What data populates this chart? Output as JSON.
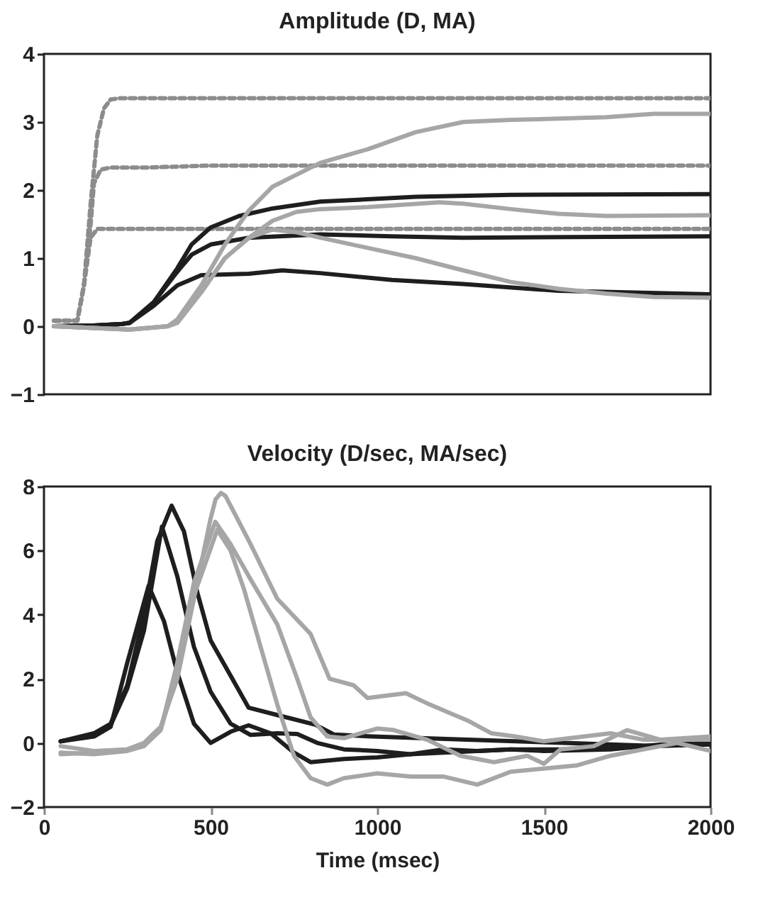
{
  "chart_data": [
    {
      "type": "line",
      "title": "Amplitude (D, MA)",
      "xlim": [
        0,
        2000
      ],
      "ylim": [
        -1,
        4
      ],
      "yticks": [
        -1,
        0,
        1,
        2,
        3,
        4
      ],
      "tick_labels": "y",
      "grid": false,
      "legend": false,
      "series": [
        {
          "color": "#8c8c8c",
          "line_style": "dashed",
          "x": [
            30,
            100,
            120,
            140,
            160,
            180,
            200,
            230,
            2000
          ],
          "values": [
            0.08,
            0.08,
            0.6,
            1.8,
            2.8,
            3.2,
            3.33,
            3.35,
            3.35
          ]
        },
        {
          "color": "#8c8c8c",
          "line_style": "dashed",
          "x": [
            30,
            100,
            120,
            140,
            150,
            170,
            200,
            300,
            500,
            2000
          ],
          "values": [
            0.08,
            0.08,
            0.6,
            1.5,
            2.1,
            2.3,
            2.33,
            2.33,
            2.36,
            2.36
          ]
        },
        {
          "color": "#8c8c8c",
          "line_style": "dashed",
          "x": [
            30,
            100,
            120,
            140,
            160,
            2000
          ],
          "values": [
            0.08,
            0.08,
            0.6,
            1.3,
            1.43,
            1.43
          ]
        },
        {
          "color": "#1e1e1e",
          "line_style": "solid",
          "x": [
            30,
            150,
            230,
            257,
            329,
            400,
            443,
            500,
            586,
            686,
            829,
            1115,
            1401,
            2000
          ],
          "values": [
            0,
            0.01,
            0.03,
            0.05,
            0.35,
            0.85,
            1.2,
            1.45,
            1.62,
            1.73,
            1.83,
            1.9,
            1.93,
            1.94
          ]
        },
        {
          "color": "#1e1e1e",
          "line_style": "solid",
          "x": [
            30,
            150,
            230,
            257,
            329,
            400,
            443,
            500,
            615,
            829,
            1044,
            1258,
            2000
          ],
          "values": [
            0,
            0.01,
            0.03,
            0.05,
            0.35,
            0.8,
            1.05,
            1.2,
            1.3,
            1.35,
            1.32,
            1.3,
            1.32
          ]
        },
        {
          "color": "#1e1e1e",
          "line_style": "solid",
          "x": [
            30,
            150,
            230,
            257,
            329,
            400,
            472,
            615,
            715,
            829,
            1044,
            1258,
            1544,
            2000
          ],
          "values": [
            0,
            0.01,
            0.03,
            0.05,
            0.3,
            0.6,
            0.75,
            0.77,
            0.82,
            0.78,
            0.68,
            0.62,
            0.52,
            0.47
          ]
        },
        {
          "color": "#a6a6a6",
          "line_style": "solid",
          "x": [
            30,
            257,
            372,
            400,
            472,
            543,
            615,
            686,
            829,
            972,
            1115,
            1258,
            1401,
            1687,
            1830,
            2000
          ],
          "values": [
            0,
            -0.05,
            0,
            0.1,
            0.6,
            1.2,
            1.7,
            2.05,
            2.4,
            2.6,
            2.85,
            3.0,
            3.03,
            3.07,
            3.12,
            3.12
          ]
        },
        {
          "color": "#a6a6a6",
          "line_style": "solid",
          "x": [
            30,
            257,
            372,
            400,
            472,
            543,
            615,
            686,
            758,
            829,
            972,
            1187,
            1258,
            1401,
            1544,
            1687,
            2000
          ],
          "values": [
            0,
            -0.05,
            0,
            0.05,
            0.5,
            1.0,
            1.3,
            1.55,
            1.68,
            1.72,
            1.75,
            1.82,
            1.8,
            1.72,
            1.65,
            1.62,
            1.63
          ]
        },
        {
          "color": "#a6a6a6",
          "line_style": "solid",
          "x": [
            30,
            257,
            372,
            400,
            472,
            543,
            615,
            686,
            758,
            829,
            972,
            1115,
            1258,
            1401,
            1544,
            1687,
            1830,
            2000
          ],
          "values": [
            0,
            -0.05,
            0,
            0.05,
            0.5,
            1.0,
            1.3,
            1.42,
            1.38,
            1.3,
            1.15,
            1.0,
            0.82,
            0.65,
            0.55,
            0.48,
            0.43,
            0.42
          ]
        }
      ]
    },
    {
      "type": "line",
      "title": "Velocity (D/sec, MA/sec)",
      "xlabel": "Time (msec)",
      "xlim": [
        0,
        2000
      ],
      "xticks": [
        0,
        500,
        1000,
        1500,
        2000
      ],
      "ylim": [
        -2,
        8
      ],
      "yticks": [
        -2,
        0,
        2,
        4,
        6,
        8
      ],
      "grid": false,
      "legend": false,
      "series": [
        {
          "color": "#1e1e1e",
          "line_style": "solid",
          "x": [
            50,
            150,
            200,
            250,
            300,
            340,
            383,
            420,
            460,
            500,
            560,
            614,
            700,
            814,
            871,
            986,
            1271,
            1557,
            1843,
            2000
          ],
          "values": [
            0.05,
            0.3,
            0.6,
            1.8,
            4.0,
            6.3,
            7.4,
            6.6,
            4.7,
            3.2,
            2.1,
            1.1,
            0.87,
            0.57,
            0.26,
            0.2,
            0.1,
            0,
            -0.1,
            -0.05
          ]
        },
        {
          "color": "#1e1e1e",
          "line_style": "solid",
          "x": [
            50,
            150,
            200,
            250,
            300,
            354,
            400,
            450,
            500,
            560,
            620,
            700,
            760,
            820,
            900,
            1000,
            1100,
            1200,
            1300,
            1400,
            1500,
            1700,
            1850,
            2000
          ],
          "values": [
            0.05,
            0.25,
            0.55,
            1.7,
            3.5,
            6.75,
            5.2,
            3.0,
            1.6,
            0.6,
            0.25,
            0.3,
            0.28,
            0,
            -0.2,
            -0.25,
            -0.35,
            -0.2,
            -0.25,
            -0.2,
            -0.25,
            -0.2,
            -0.05,
            -0.05
          ]
        },
        {
          "color": "#1e1e1e",
          "line_style": "solid",
          "x": [
            50,
            150,
            200,
            250,
            314,
            360,
            400,
            450,
            500,
            560,
            614,
            680,
            750,
            800,
            900,
            1000,
            1100,
            1200,
            1400,
            1600,
            1800,
            2000
          ],
          "values": [
            0.05,
            0.2,
            0.5,
            2.5,
            4.9,
            3.8,
            2.2,
            0.6,
            0,
            0.35,
            0.55,
            0.3,
            -0.3,
            -0.6,
            -0.5,
            -0.45,
            -0.35,
            -0.3,
            -0.2,
            -0.2,
            -0.1,
            0
          ]
        },
        {
          "color": "#a6a6a6",
          "line_style": "solid",
          "x": [
            50,
            150,
            250,
            300,
            350,
            400,
            450,
            500,
            515,
            531,
            545,
            560,
            620,
            700,
            800,
            857,
            929,
            971,
            1086,
            1157,
            1214,
            1271,
            1343,
            1414,
            1500,
            1700,
            1800,
            2000
          ],
          "values": [
            -0.1,
            -0.25,
            -0.2,
            0,
            0.5,
            2.0,
            4.5,
            7.0,
            7.6,
            7.8,
            7.7,
            7.4,
            6.2,
            4.5,
            3.4,
            2.0,
            1.8,
            1.4,
            1.55,
            1.2,
            0.95,
            0.7,
            0.3,
            0.2,
            0.05,
            0.3,
            0.1,
            0.1
          ]
        },
        {
          "color": "#a6a6a6",
          "line_style": "solid",
          "x": [
            50,
            150,
            250,
            300,
            350,
            400,
            450,
            514,
            560,
            620,
            700,
            760,
            800,
            850,
            900,
            1000,
            1050,
            1150,
            1250,
            1350,
            1450,
            1500,
            1550,
            1650,
            1750,
            1850,
            2000
          ],
          "values": [
            -0.3,
            -0.35,
            -0.25,
            -0.1,
            0.4,
            2.5,
            5.0,
            6.9,
            6.2,
            5.1,
            3.7,
            2.0,
            0.8,
            0.2,
            0.15,
            0.45,
            0.4,
            0.1,
            -0.4,
            -0.6,
            -0.4,
            -0.65,
            -0.2,
            -0.1,
            0.4,
            0.1,
            0.2
          ]
        },
        {
          "color": "#a6a6a6",
          "line_style": "solid",
          "x": [
            50,
            150,
            250,
            300,
            350,
            400,
            450,
            520,
            560,
            600,
            650,
            700,
            750,
            800,
            850,
            900,
            1000,
            1100,
            1200,
            1300,
            1400,
            1500,
            1600,
            1700,
            1800,
            1900,
            2000
          ],
          "values": [
            -0.35,
            -0.3,
            -0.2,
            -0.05,
            0.4,
            2.2,
            4.6,
            6.65,
            6.0,
            4.8,
            3.0,
            1.2,
            -0.4,
            -1.1,
            -1.3,
            -1.1,
            -0.95,
            -1.05,
            -1.05,
            -1.3,
            -0.9,
            -0.8,
            -0.7,
            -0.4,
            -0.2,
            0,
            -0.25
          ]
        }
      ]
    }
  ]
}
